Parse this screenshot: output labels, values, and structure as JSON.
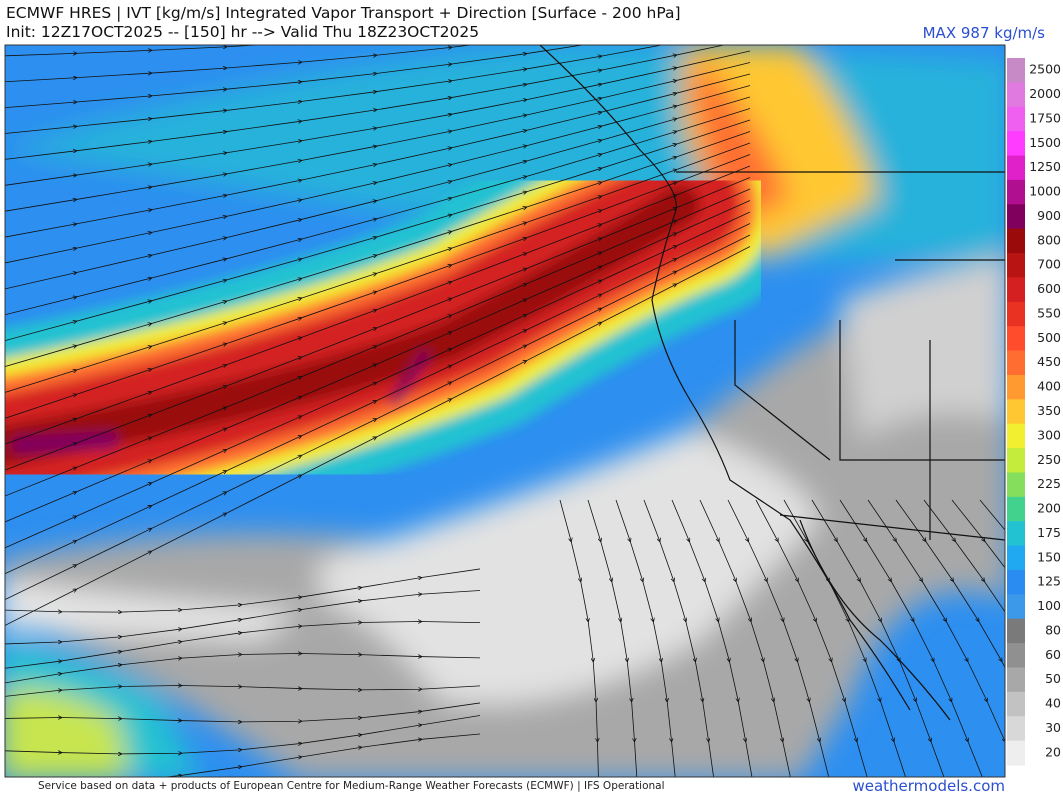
{
  "header": {
    "title": "ECMWF HRES | IVT [kg/m/s] Integrated Vapor Transport + Direction [Surface - 200 hPa]",
    "subtitle": "Init: 12Z17OCT2025 -- [150] hr --> Valid Thu 18Z23OCT2025",
    "max_label": "MAX 987 kg/m/s"
  },
  "colorbar": {
    "levels": [
      {
        "value": 2500,
        "color": "#c78ac7"
      },
      {
        "value": 2000,
        "color": "#e07ae0"
      },
      {
        "value": 1750,
        "color": "#f060f0"
      },
      {
        "value": 1500,
        "color": "#ff3cff"
      },
      {
        "value": 1250,
        "color": "#e020c8"
      },
      {
        "value": 1000,
        "color": "#b0108f"
      },
      {
        "value": 900,
        "color": "#80005e"
      },
      {
        "value": 800,
        "color": "#9a0a0a"
      },
      {
        "value": 700,
        "color": "#b81414"
      },
      {
        "value": 600,
        "color": "#d42020"
      },
      {
        "value": 550,
        "color": "#ea3222"
      },
      {
        "value": 500,
        "color": "#ff4c2c"
      },
      {
        "value": 450,
        "color": "#ff6e30"
      },
      {
        "value": 400,
        "color": "#ff9a30"
      },
      {
        "value": 350,
        "color": "#ffc832"
      },
      {
        "value": 300,
        "color": "#f2ee30"
      },
      {
        "value": 250,
        "color": "#c4ec3c"
      },
      {
        "value": 225,
        "color": "#86df5c"
      },
      {
        "value": 200,
        "color": "#42d28e"
      },
      {
        "value": 175,
        "color": "#22c2d2"
      },
      {
        "value": 150,
        "color": "#20a8f0"
      },
      {
        "value": 125,
        "color": "#2a8cf0"
      },
      {
        "value": 100,
        "color": "#3c98e8"
      },
      {
        "value": 80,
        "color": "#7a7a7a"
      },
      {
        "value": 60,
        "color": "#909090"
      },
      {
        "value": 50,
        "color": "#a8a8a8"
      },
      {
        "value": 40,
        "color": "#c2c2c2"
      },
      {
        "value": 30,
        "color": "#d8d8d8"
      },
      {
        "value": 20,
        "color": "#eeeeee"
      }
    ]
  },
  "footer": {
    "credit": "Service based on data + products of European Centre for Medium-Range Weather Forecasts (ECMWF) | IFS Operational",
    "site": "weathermodels.com"
  }
}
